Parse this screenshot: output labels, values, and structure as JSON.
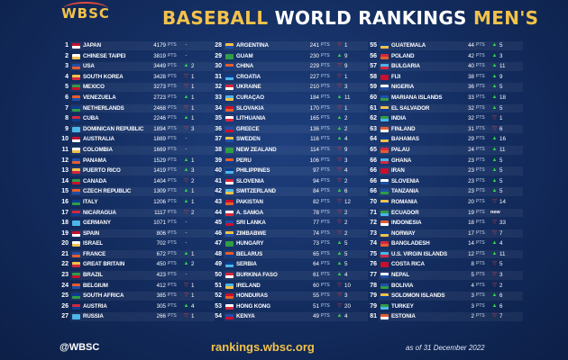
{
  "header": {
    "logo": "WBSC",
    "title_a": "BASEBALL ",
    "title_b": "WORLD RANKINGS ",
    "title_c": "MEN'S"
  },
  "footer": {
    "handle": "@WBSC",
    "site": "rankings.wbsc.org",
    "date": "as of 31 December 2022"
  },
  "pts_label": "PTS",
  "colors": {
    "gold": "#f3c24a",
    "up": "#2fd24b",
    "down": "#ee3b3b"
  },
  "columns": [
    [
      {
        "rank": "1",
        "name": "JAPAN",
        "pts": "4179",
        "move": "-",
        "change": ""
      },
      {
        "rank": "2",
        "name": "CHINESE TAIPEI",
        "pts": "3819",
        "move": "-",
        "change": ""
      },
      {
        "rank": "3",
        "name": "USA",
        "pts": "3449",
        "move": "up",
        "change": "2"
      },
      {
        "rank": "4",
        "name": "SOUTH KOREA",
        "pts": "3428",
        "move": "down",
        "change": "1"
      },
      {
        "rank": "5",
        "name": "MEXICO",
        "pts": "3273",
        "move": "down",
        "change": "1"
      },
      {
        "rank": "6",
        "name": "VENEZUELA",
        "pts": "2723",
        "move": "up",
        "change": "1"
      },
      {
        "rank": "7",
        "name": "NETHERLANDS",
        "pts": "2468",
        "move": "down",
        "change": "1"
      },
      {
        "rank": "8",
        "name": "CUBA",
        "pts": "2246",
        "move": "up",
        "change": "1"
      },
      {
        "rank": "9",
        "name": "DOMINICAN REPUBLIC",
        "pts": "1894",
        "move": "down",
        "change": "3"
      },
      {
        "rank": "10",
        "name": "AUSTRALIA",
        "pts": "1889",
        "move": "-",
        "change": ""
      },
      {
        "rank": "11",
        "name": "COLOMBIA",
        "pts": "1669",
        "move": "-",
        "change": ""
      },
      {
        "rank": "12",
        "name": "PANAMA",
        "pts": "1529",
        "move": "up",
        "change": "1"
      },
      {
        "rank": "13",
        "name": "PUERTO RICO",
        "pts": "1419",
        "move": "up",
        "change": "3"
      },
      {
        "rank": "14",
        "name": "CANADA",
        "pts": "1404",
        "move": "down",
        "change": "2"
      },
      {
        "rank": "15",
        "name": "CZECH REPUBLIC",
        "pts": "1309",
        "move": "up",
        "change": "1"
      },
      {
        "rank": "16",
        "name": "ITALY",
        "pts": "1206",
        "move": "up",
        "change": "1"
      },
      {
        "rank": "17",
        "name": "NICARAGUA",
        "pts": "1117",
        "move": "down",
        "change": "2"
      },
      {
        "rank": "18",
        "name": "GERMANY",
        "pts": "1071",
        "move": "-",
        "change": ""
      },
      {
        "rank": "19",
        "name": "SPAIN",
        "pts": "806",
        "move": "-",
        "change": ""
      },
      {
        "rank": "20",
        "name": "ISRAEL",
        "pts": "702",
        "move": "-",
        "change": ""
      },
      {
        "rank": "21",
        "name": "FRANCE",
        "pts": "672",
        "move": "up",
        "change": "1"
      },
      {
        "rank": "22",
        "name": "GREAT BRITAIN",
        "pts": "450",
        "move": "up",
        "change": "2"
      },
      {
        "rank": "23",
        "name": "BRAZIL",
        "pts": "423",
        "move": "-",
        "change": ""
      },
      {
        "rank": "24",
        "name": "BELGIUM",
        "pts": "412",
        "move": "down",
        "change": "1"
      },
      {
        "rank": "25",
        "name": "SOUTH AFRICA",
        "pts": "385",
        "move": "down",
        "change": "1"
      },
      {
        "rank": "26",
        "name": "AUSTRIA",
        "pts": "305",
        "move": "up",
        "change": "4"
      },
      {
        "rank": "27",
        "name": "RUSSIA",
        "pts": "266",
        "move": "down",
        "change": "1"
      }
    ],
    [
      {
        "rank": "28",
        "name": "ARGENTINA",
        "pts": "241",
        "move": "down",
        "change": "1"
      },
      {
        "rank": "29",
        "name": "GUAM",
        "pts": "230",
        "move": "up",
        "change": "9"
      },
      {
        "rank": "30",
        "name": "CHINA",
        "pts": "229",
        "move": "down",
        "change": "9"
      },
      {
        "rank": "31",
        "name": "CROATIA",
        "pts": "227",
        "move": "down",
        "change": "1"
      },
      {
        "rank": "32",
        "name": "UKRAINE",
        "pts": "210",
        "move": "down",
        "change": "3"
      },
      {
        "rank": "33",
        "name": "CURAÇAO",
        "pts": "184",
        "move": "up",
        "change": "11"
      },
      {
        "rank": "34",
        "name": "SLOVAKIA",
        "pts": "170",
        "move": "down",
        "change": "1"
      },
      {
        "rank": "35",
        "name": "LITHUANIA",
        "pts": "165",
        "move": "up",
        "change": "2"
      },
      {
        "rank": "36",
        "name": "GREECE",
        "pts": "136",
        "move": "up",
        "change": "2"
      },
      {
        "rank": "37",
        "name": "SWEDEN",
        "pts": "116",
        "move": "up",
        "change": "4"
      },
      {
        "rank": "38",
        "name": "NEW ZEALAND",
        "pts": "114",
        "move": "down",
        "change": "9"
      },
      {
        "rank": "39",
        "name": "PERU",
        "pts": "106",
        "move": "down",
        "change": "3"
      },
      {
        "rank": "40",
        "name": "PHILIPPINES",
        "pts": "97",
        "move": "down",
        "change": "4"
      },
      {
        "rank": "41",
        "name": "SLOVENIA",
        "pts": "94",
        "move": "down",
        "change": "2"
      },
      {
        "rank": "42",
        "name": "SWITZERLAND",
        "pts": "84",
        "move": "up",
        "change": "6"
      },
      {
        "rank": "43",
        "name": "PAKISTAN",
        "pts": "82",
        "move": "down",
        "change": "12"
      },
      {
        "rank": "44",
        "name": "A. SAMOA",
        "pts": "78",
        "move": "down",
        "change": "2"
      },
      {
        "rank": "45",
        "name": "SRI LANKA",
        "pts": "77",
        "move": "down",
        "change": "2"
      },
      {
        "rank": "46",
        "name": "ZIMBABWE",
        "pts": "74",
        "move": "down",
        "change": "2"
      },
      {
        "rank": "47",
        "name": "HUNGARY",
        "pts": "73",
        "move": "up",
        "change": "5"
      },
      {
        "rank": "48",
        "name": "BELARUS",
        "pts": "65",
        "move": "up",
        "change": "5"
      },
      {
        "rank": "49",
        "name": "SERBIA",
        "pts": "64",
        "move": "up",
        "change": "5"
      },
      {
        "rank": "50",
        "name": "BURKINA FASO",
        "pts": "61",
        "move": "up",
        "change": "4"
      },
      {
        "rank": "51",
        "name": "IRELAND",
        "pts": "60",
        "move": "down",
        "change": "10"
      },
      {
        "rank": "52",
        "name": "HONDURAS",
        "pts": "55",
        "move": "down",
        "change": "3"
      },
      {
        "rank": "53",
        "name": "HONG KONG",
        "pts": "51",
        "move": "down",
        "change": "20"
      },
      {
        "rank": "54",
        "name": "KENYA",
        "pts": "49",
        "move": "up",
        "change": "4"
      }
    ],
    [
      {
        "rank": "55",
        "name": "GUATEMALA",
        "pts": "44",
        "move": "up",
        "change": "5"
      },
      {
        "rank": "56",
        "name": "POLAND",
        "pts": "42",
        "move": "up",
        "change": "3"
      },
      {
        "rank": "57",
        "name": "BULGARIA",
        "pts": "40",
        "move": "up",
        "change": "11"
      },
      {
        "rank": "58",
        "name": "FIJI",
        "pts": "38",
        "move": "up",
        "change": "9"
      },
      {
        "rank": "59",
        "name": "NIGERIA",
        "pts": "36",
        "move": "up",
        "change": "5"
      },
      {
        "rank": "60",
        "name": "MARIANA ISLANDS",
        "pts": "33",
        "move": "up",
        "change": "18"
      },
      {
        "rank": "61",
        "name": "EL SALVADOR",
        "pts": "32",
        "move": "up",
        "change": "5"
      },
      {
        "rank": "62",
        "name": "INDIA",
        "pts": "32",
        "move": "down",
        "change": "1"
      },
      {
        "rank": "63",
        "name": "FINLAND",
        "pts": "31",
        "move": "down",
        "change": "6"
      },
      {
        "rank": "64",
        "name": "BAHAMAS",
        "pts": "29",
        "move": "up",
        "change": "16"
      },
      {
        "rank": "65",
        "name": "PALAU",
        "pts": "24",
        "move": "up",
        "change": "11"
      },
      {
        "rank": "66",
        "name": "GHANA",
        "pts": "23",
        "move": "up",
        "change": "5"
      },
      {
        "rank": "66",
        "name": "IRAN",
        "pts": "23",
        "move": "up",
        "change": "5"
      },
      {
        "rank": "66",
        "name": "SLOVENIA",
        "pts": "23",
        "move": "up",
        "change": "5"
      },
      {
        "rank": "66",
        "name": "TANZANIA",
        "pts": "23",
        "move": "up",
        "change": "5"
      },
      {
        "rank": "70",
        "name": "ROMANIA",
        "pts": "20",
        "move": "down",
        "change": "14"
      },
      {
        "rank": "71",
        "name": "ECUADOR",
        "pts": "19",
        "move": "new",
        "change": "new"
      },
      {
        "rank": "72",
        "name": "INDONESIA",
        "pts": "18",
        "move": "down",
        "change": "33"
      },
      {
        "rank": "73",
        "name": "NORWAY",
        "pts": "17",
        "move": "down",
        "change": "7"
      },
      {
        "rank": "74",
        "name": "BANGLADESH",
        "pts": "14",
        "move": "up",
        "change": "4"
      },
      {
        "rank": "75",
        "name": "U.S. VIRGIN ISLANDS",
        "pts": "12",
        "move": "up",
        "change": "11"
      },
      {
        "rank": "76",
        "name": "COSTA RICA",
        "pts": "8",
        "move": "down",
        "change": "5"
      },
      {
        "rank": "77",
        "name": "NEPAL",
        "pts": "5",
        "move": "down",
        "change": "3"
      },
      {
        "rank": "78",
        "name": "BOLIVIA",
        "pts": "4",
        "move": "down",
        "change": "2"
      },
      {
        "rank": "79",
        "name": "SOLOMON ISLANDS",
        "pts": "3",
        "move": "up",
        "change": "6"
      },
      {
        "rank": "79",
        "name": "TURKEY",
        "pts": "3",
        "move": "up",
        "change": "6"
      },
      {
        "rank": "81",
        "name": "ESTONIA",
        "pts": "2",
        "move": "down",
        "change": "7"
      }
    ]
  ]
}
